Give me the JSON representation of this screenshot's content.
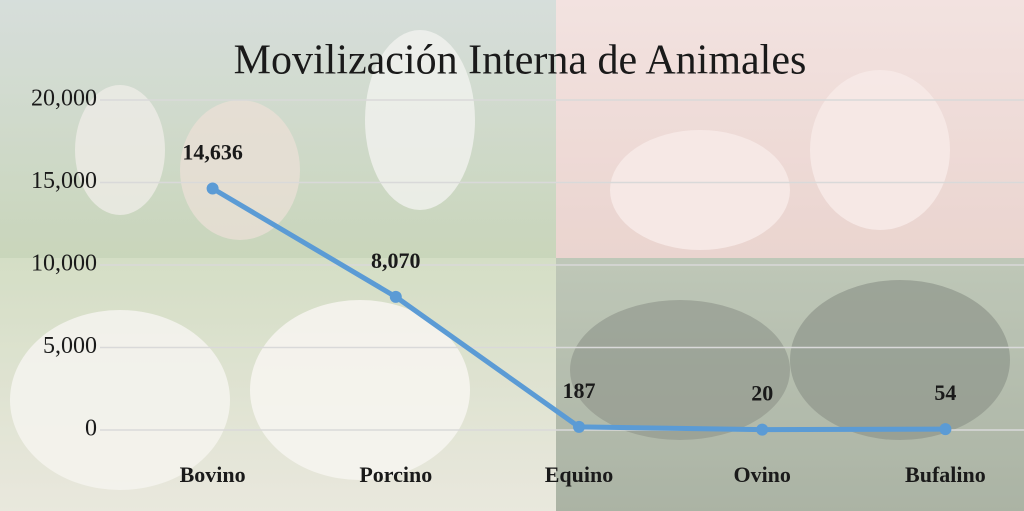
{
  "chart_data": {
    "type": "line",
    "title": "Movilización Interna de Animales",
    "categories": [
      "Bovino",
      "Porcino",
      "Equino",
      "Ovino",
      "Bufalino"
    ],
    "values": [
      14636,
      8070,
      187,
      20,
      54
    ],
    "value_labels": [
      "14,636",
      "8,070",
      "187",
      "20",
      "54"
    ],
    "color": "#5b9bd5",
    "ylim": [
      0,
      20000
    ],
    "yticks": [
      0,
      {
        "value": 5000,
        "label": "5,000"
      },
      {
        "value": 10000,
        "label": "10,000"
      },
      {
        "value": 15000,
        "label": "15,000"
      },
      {
        "value": 20000,
        "label": "20,000"
      }
    ],
    "grid": true
  }
}
